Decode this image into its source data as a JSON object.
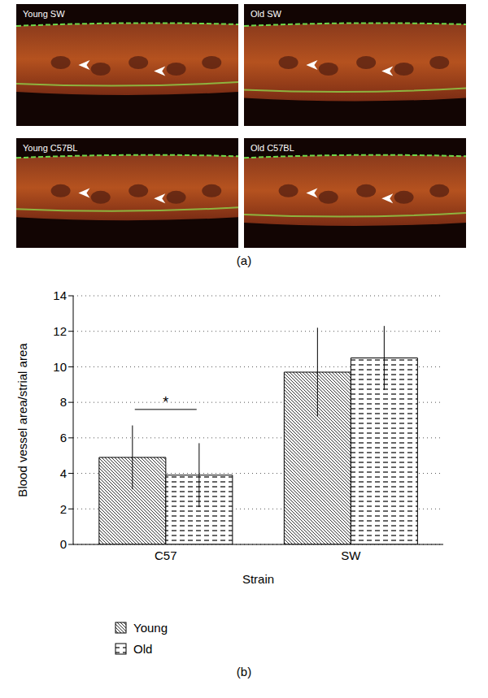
{
  "images": {
    "panel_label": "(a)",
    "panels": [
      "Young SW",
      "Old SW",
      "Young C57BL",
      "Old C57BL"
    ]
  },
  "chart_data": {
    "type": "bar",
    "panel_label": "(b)",
    "x_label": "Strain",
    "y_label": "Blood vessel area/strial area",
    "categories": [
      "C57",
      "SW"
    ],
    "series": [
      {
        "name": "Young",
        "color": "#000000",
        "values": [
          4.9,
          9.7
        ],
        "errors": [
          1.8,
          2.5
        ]
      },
      {
        "name": "Old",
        "color": "#000000",
        "values": [
          3.9,
          10.5
        ],
        "errors": [
          1.8,
          1.8
        ]
      }
    ],
    "ylim": [
      0,
      14
    ],
    "yticks": [
      0,
      2,
      4,
      6,
      8,
      10,
      12,
      14
    ],
    "grid": true,
    "legend": "bottom-left",
    "annotations": [
      {
        "text": "*",
        "category": "C57",
        "y": 7.6
      }
    ]
  }
}
